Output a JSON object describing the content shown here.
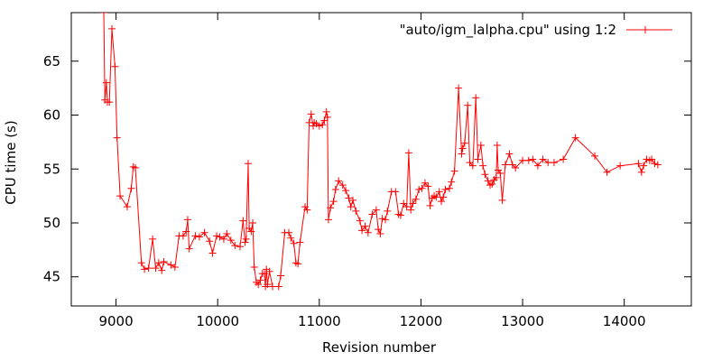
{
  "chart_data": {
    "type": "line",
    "title": "",
    "xlabel": "Revision number",
    "ylabel": "CPU time (s)",
    "xlim": [
      8560,
      14660
    ],
    "ylim": [
      42.3,
      69.5
    ],
    "xticks": [
      9000,
      10000,
      11000,
      12000,
      13000,
      14000
    ],
    "yticks": [
      45,
      50,
      55,
      60,
      65
    ],
    "grid": false,
    "legend_position": "top-right",
    "line_color": "#ff0000",
    "marker": "plus",
    "series": [
      {
        "name": "\"auto/igm_lalpha.cpu\" using 1:2",
        "points": [
          [
            8880,
            69.5
          ],
          [
            8890,
            61.4
          ],
          [
            8905,
            63.0
          ],
          [
            8915,
            61.2
          ],
          [
            8935,
            61.2
          ],
          [
            8960,
            68.0
          ],
          [
            8990,
            64.5
          ],
          [
            9010,
            57.9
          ],
          [
            9040,
            52.5
          ],
          [
            9110,
            51.5
          ],
          [
            9150,
            53.2
          ],
          [
            9170,
            55.2
          ],
          [
            9190,
            55.1
          ],
          [
            9250,
            46.3
          ],
          [
            9280,
            45.7
          ],
          [
            9320,
            45.8
          ],
          [
            9360,
            48.5
          ],
          [
            9390,
            45.8
          ],
          [
            9420,
            46.3
          ],
          [
            9450,
            45.6
          ],
          [
            9470,
            46.4
          ],
          [
            9540,
            46.1
          ],
          [
            9580,
            45.9
          ],
          [
            9620,
            48.8
          ],
          [
            9660,
            48.8
          ],
          [
            9690,
            49.2
          ],
          [
            9705,
            50.3
          ],
          [
            9720,
            47.6
          ],
          [
            9780,
            48.8
          ],
          [
            9820,
            48.7
          ],
          [
            9870,
            49.1
          ],
          [
            9920,
            48.3
          ],
          [
            9950,
            47.2
          ],
          [
            9990,
            48.8
          ],
          [
            10020,
            48.7
          ],
          [
            10060,
            48.5
          ],
          [
            10090,
            49.0
          ],
          [
            10130,
            48.4
          ],
          [
            10170,
            47.9
          ],
          [
            10220,
            47.8
          ],
          [
            10250,
            50.2
          ],
          [
            10270,
            48.2
          ],
          [
            10280,
            48.5
          ],
          [
            10300,
            55.5
          ],
          [
            10310,
            49.5
          ],
          [
            10330,
            49.2
          ],
          [
            10345,
            50.0
          ],
          [
            10360,
            45.9
          ],
          [
            10380,
            44.5
          ],
          [
            10400,
            44.3
          ],
          [
            10420,
            44.7
          ],
          [
            10440,
            45.3
          ],
          [
            10460,
            45.3
          ],
          [
            10470,
            44.1
          ],
          [
            10480,
            45.7
          ],
          [
            10490,
            44.3
          ],
          [
            10510,
            45.5
          ],
          [
            10540,
            44.1
          ],
          [
            10600,
            44.1
          ],
          [
            10620,
            45.1
          ],
          [
            10660,
            49.1
          ],
          [
            10700,
            49.1
          ],
          [
            10720,
            48.6
          ],
          [
            10750,
            48.1
          ],
          [
            10770,
            46.3
          ],
          [
            10790,
            46.2
          ],
          [
            10810,
            48.2
          ],
          [
            10860,
            51.5
          ],
          [
            10880,
            51.2
          ],
          [
            10900,
            59.3
          ],
          [
            10920,
            60.1
          ],
          [
            10940,
            59.0
          ],
          [
            10950,
            59.3
          ],
          [
            10970,
            59.2
          ],
          [
            11000,
            59.0
          ],
          [
            11030,
            59.1
          ],
          [
            11050,
            59.5
          ],
          [
            11070,
            60.3
          ],
          [
            11080,
            59.8
          ],
          [
            11090,
            50.3
          ],
          [
            11110,
            51.4
          ],
          [
            11140,
            52.0
          ],
          [
            11160,
            53.1
          ],
          [
            11190,
            53.9
          ],
          [
            11230,
            53.5
          ],
          [
            11260,
            53.0
          ],
          [
            11290,
            52.3
          ],
          [
            11310,
            51.5
          ],
          [
            11330,
            52.1
          ],
          [
            11360,
            51.1
          ],
          [
            11400,
            50.2
          ],
          [
            11420,
            49.3
          ],
          [
            11450,
            49.7
          ],
          [
            11480,
            49.1
          ],
          [
            11520,
            50.8
          ],
          [
            11560,
            51.2
          ],
          [
            11580,
            49.4
          ],
          [
            11600,
            49.0
          ],
          [
            11620,
            50.4
          ],
          [
            11650,
            50.3
          ],
          [
            11670,
            51.1
          ],
          [
            11710,
            52.9
          ],
          [
            11750,
            52.9
          ],
          [
            11780,
            50.8
          ],
          [
            11800,
            50.7
          ],
          [
            11830,
            51.8
          ],
          [
            11860,
            51.5
          ],
          [
            11880,
            56.5
          ],
          [
            11900,
            51.2
          ],
          [
            11920,
            51.8
          ],
          [
            11950,
            52.2
          ],
          [
            11980,
            53.1
          ],
          [
            12010,
            53.2
          ],
          [
            12040,
            53.7
          ],
          [
            12070,
            53.4
          ],
          [
            12090,
            51.6
          ],
          [
            12110,
            52.3
          ],
          [
            12130,
            52.5
          ],
          [
            12150,
            52.4
          ],
          [
            12180,
            52.9
          ],
          [
            12200,
            52.0
          ],
          [
            12220,
            52.4
          ],
          [
            12240,
            53.1
          ],
          [
            12280,
            53.2
          ],
          [
            12300,
            53.8
          ],
          [
            12330,
            54.8
          ],
          [
            12370,
            62.5
          ],
          [
            12400,
            56.4
          ],
          [
            12410,
            56.9
          ],
          [
            12430,
            57.4
          ],
          [
            12460,
            60.9
          ],
          [
            12480,
            55.6
          ],
          [
            12510,
            55.3
          ],
          [
            12540,
            61.6
          ],
          [
            12560,
            55.9
          ],
          [
            12590,
            57.2
          ],
          [
            12610,
            55.3
          ],
          [
            12630,
            54.5
          ],
          [
            12660,
            53.9
          ],
          [
            12680,
            53.5
          ],
          [
            12700,
            53.6
          ],
          [
            12720,
            54.0
          ],
          [
            12740,
            54.2
          ],
          [
            12750,
            57.2
          ],
          [
            12760,
            54.9
          ],
          [
            12780,
            54.6
          ],
          [
            12800,
            52.1
          ],
          [
            12830,
            55.4
          ],
          [
            12870,
            56.4
          ],
          [
            12900,
            55.4
          ],
          [
            12930,
            55.1
          ],
          [
            13000,
            55.8
          ],
          [
            13060,
            55.8
          ],
          [
            13100,
            55.9
          ],
          [
            13150,
            55.3
          ],
          [
            13200,
            55.9
          ],
          [
            13250,
            55.6
          ],
          [
            13310,
            55.6
          ],
          [
            13400,
            55.9
          ],
          [
            13520,
            57.9
          ],
          [
            13710,
            56.2
          ],
          [
            13830,
            54.7
          ],
          [
            13960,
            55.3
          ],
          [
            14140,
            55.5
          ],
          [
            14170,
            54.7
          ],
          [
            14190,
            55.3
          ],
          [
            14220,
            55.9
          ],
          [
            14250,
            55.8
          ],
          [
            14270,
            55.9
          ],
          [
            14300,
            55.5
          ],
          [
            14330,
            55.4
          ]
        ]
      }
    ]
  }
}
